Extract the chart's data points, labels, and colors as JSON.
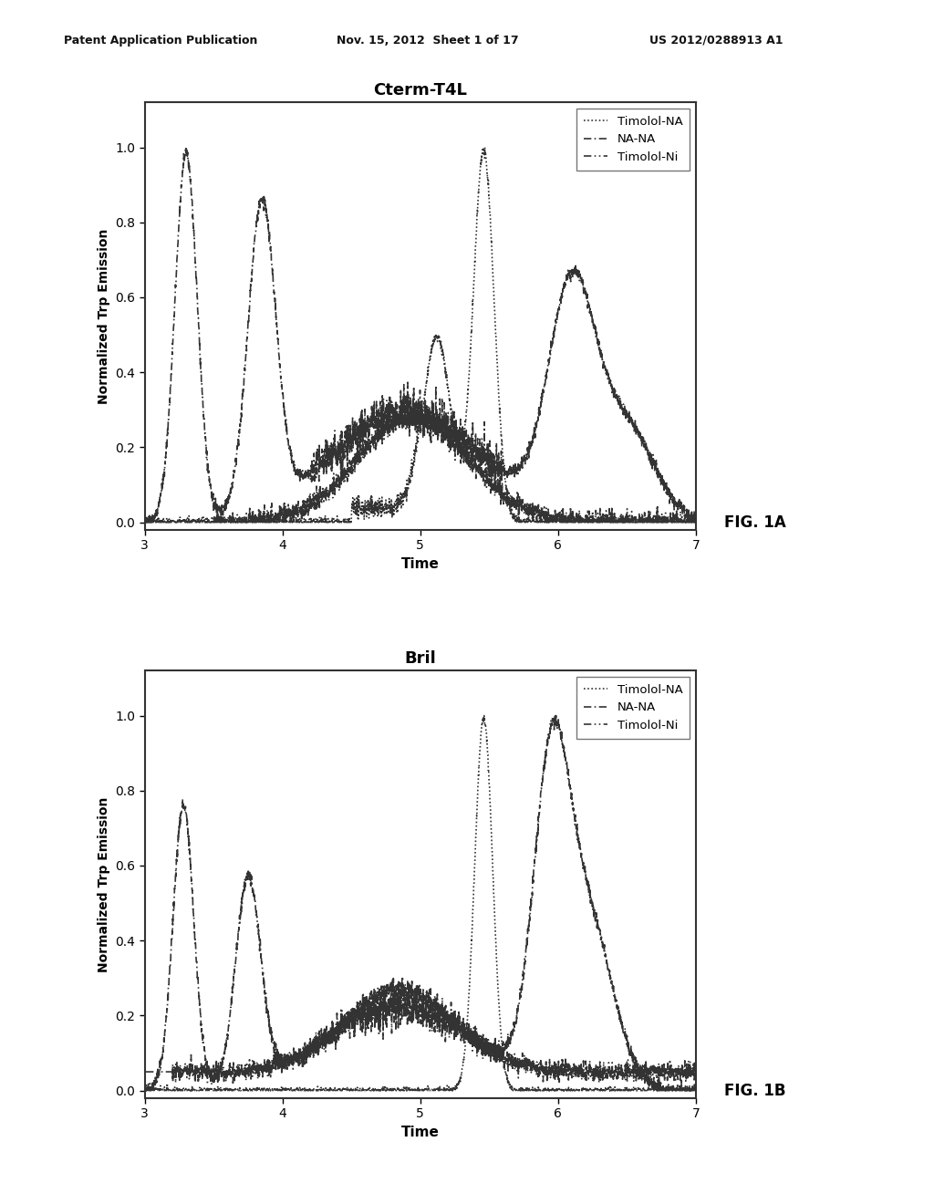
{
  "fig1a_title": "Cterm-T4L",
  "fig1b_title": "Bril",
  "fig1a_label": "FIG. 1A",
  "fig1b_label": "FIG. 1B",
  "xlabel": "Time",
  "ylabel": "Normalized Trp Emission",
  "xlim": [
    3,
    7
  ],
  "ylim": [
    -0.02,
    1.12
  ],
  "xticks": [
    3,
    4,
    5,
    6,
    7
  ],
  "yticks": [
    0.0,
    0.2,
    0.4,
    0.6,
    0.8,
    1.0
  ],
  "legend_labels": [
    "Timolol-NA",
    "NA-NA",
    "Timolol-Ni"
  ],
  "header_left": "Patent Application Publication",
  "header_mid": "Nov. 15, 2012  Sheet 1 of 17",
  "header_right": "US 2012/0288913 A1",
  "background_color": "#ffffff"
}
